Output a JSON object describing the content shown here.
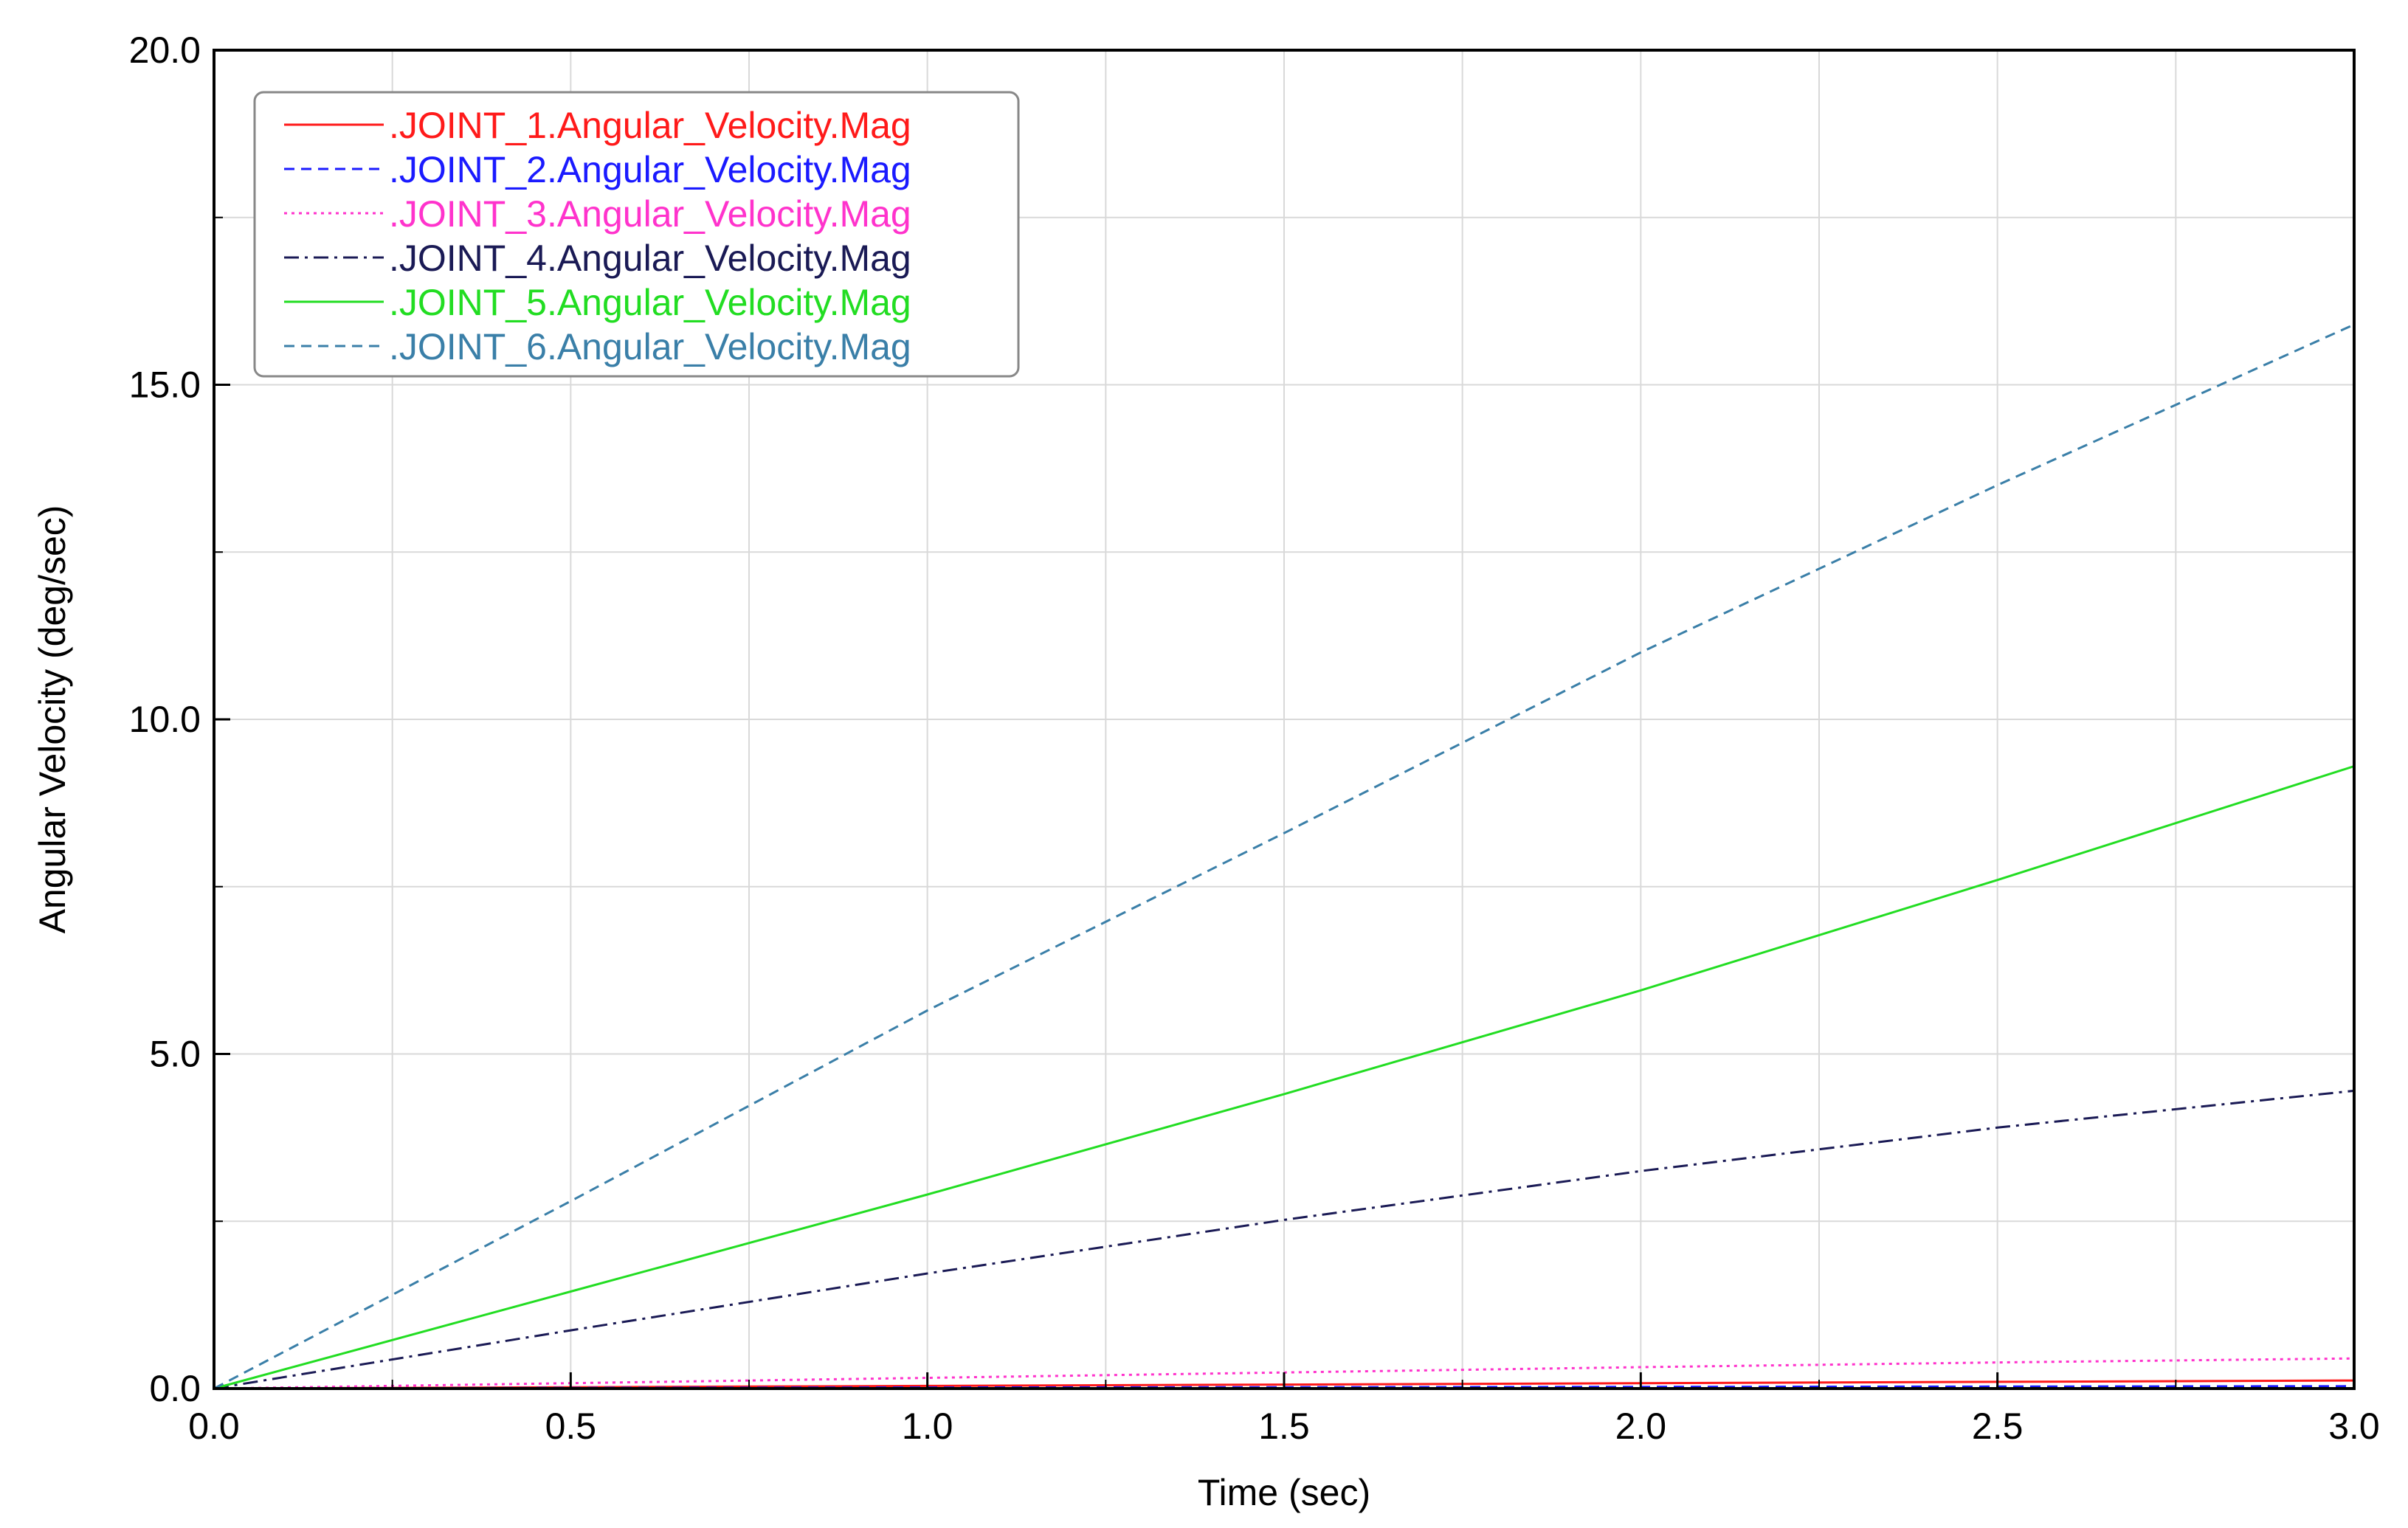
{
  "chart_data": {
    "type": "line",
    "title": "",
    "xlabel": "Time (sec)",
    "ylabel": "Angular Velocity (deg/sec)",
    "xlim": [
      0.0,
      3.0
    ],
    "ylim": [
      0.0,
      20.0
    ],
    "x_ticks": [
      0.0,
      0.5,
      1.0,
      1.5,
      2.0,
      2.5,
      3.0
    ],
    "x_tick_labels": [
      "0.0",
      "0.5",
      "1.0",
      "1.5",
      "2.0",
      "2.5",
      "3.0"
    ],
    "y_ticks": [
      0.0,
      5.0,
      10.0,
      15.0,
      20.0
    ],
    "y_tick_labels": [
      "0.0",
      "5.0",
      "10.0",
      "15.0",
      "20.0"
    ],
    "x_minor_step": 0.25,
    "y_minor_step": 2.5,
    "grid": true,
    "legend_position": "top-left",
    "series": [
      {
        "name": ".JOINT_1.Angular_Velocity.Mag",
        "color": "#ff1a1a",
        "dash": "solid",
        "x": [
          0,
          0.5,
          1.0,
          1.5,
          2.0,
          2.5,
          3.0
        ],
        "y": [
          0,
          0.02,
          0.04,
          0.06,
          0.08,
          0.1,
          0.12
        ]
      },
      {
        "name": ".JOINT_2.Angular_Velocity.Mag",
        "color": "#1a1aff",
        "dash": "dashed",
        "x": [
          0,
          0.5,
          1.0,
          1.5,
          2.0,
          2.5,
          3.0
        ],
        "y": [
          0,
          0.01,
          0.015,
          0.02,
          0.025,
          0.03,
          0.035
        ]
      },
      {
        "name": ".JOINT_3.Angular_Velocity.Mag",
        "color": "#ff33cc",
        "dash": "dotted",
        "x": [
          0,
          0.5,
          1.0,
          1.5,
          2.0,
          2.5,
          3.0
        ],
        "y": [
          0,
          0.08,
          0.16,
          0.24,
          0.32,
          0.39,
          0.45
        ]
      },
      {
        "name": ".JOINT_4.Angular_Velocity.Mag",
        "color": "#1a1a55",
        "dash": "dashdot",
        "x": [
          0,
          0.5,
          1.0,
          1.5,
          2.0,
          2.5,
          3.0
        ],
        "y": [
          0,
          0.87,
          1.72,
          2.52,
          3.25,
          3.9,
          4.45
        ]
      },
      {
        "name": ".JOINT_5.Angular_Velocity.Mag",
        "color": "#22dd22",
        "dash": "solid",
        "x": [
          0,
          0.5,
          1.0,
          1.5,
          2.0,
          2.5,
          3.0
        ],
        "y": [
          0,
          1.45,
          2.9,
          4.4,
          5.95,
          7.6,
          9.3
        ]
      },
      {
        "name": ".JOINT_6.Angular_Velocity.Mag",
        "color": "#3a7fa8",
        "dash": "dashed",
        "x": [
          0,
          0.5,
          1.0,
          1.5,
          2.0,
          2.5,
          3.0
        ],
        "y": [
          0,
          2.8,
          5.65,
          8.3,
          11.0,
          13.5,
          15.9
        ]
      }
    ]
  }
}
